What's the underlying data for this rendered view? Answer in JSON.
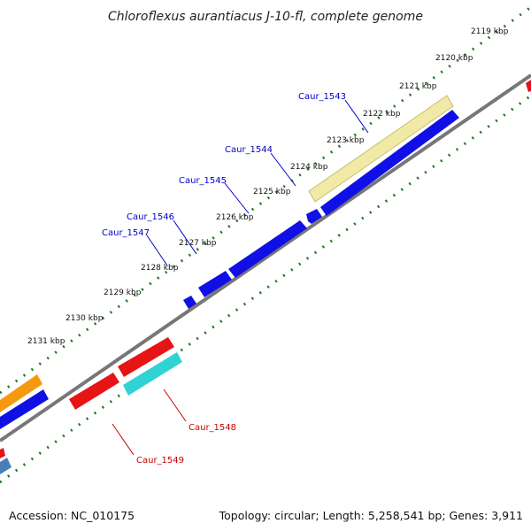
{
  "title": "Chloroflexus aurantiacus J-10-fl, complete genome",
  "footer": {
    "accession": "Accession: NC_010175",
    "summary": "Topology: circular; Length: 5,258,541 bp; Genes: 3,911"
  },
  "ticks": [
    "2119 kbp",
    "2120 kbp",
    "2121 kbp",
    "2122 kbp",
    "2123 kbp",
    "2124 kbp",
    "2125 kbp",
    "2126 kbp",
    "2127 kbp",
    "2128 kbp",
    "2129 kbp",
    "2130 kbp",
    "2131 kbp"
  ],
  "gene_labels": {
    "caur_1543": "Caur_1543",
    "caur_1544": "Caur_1544",
    "caur_1545": "Caur_1545",
    "caur_1546": "Caur_1546",
    "caur_1547": "Caur_1547",
    "caur_1548": "Caur_1548",
    "caur_1549": "Caur_1549"
  },
  "colors": {
    "backbone": "#777777",
    "forward_gene": "#1010e6",
    "reverse_gene": "#e61414",
    "highlight": "#f0eaa6",
    "cyan": "#2fd3d3",
    "orange": "#f59a10",
    "steel": "#4a7fb5",
    "tick": "#1d7a1d",
    "label_blue": "#0000c8",
    "label_red": "#c80000"
  }
}
